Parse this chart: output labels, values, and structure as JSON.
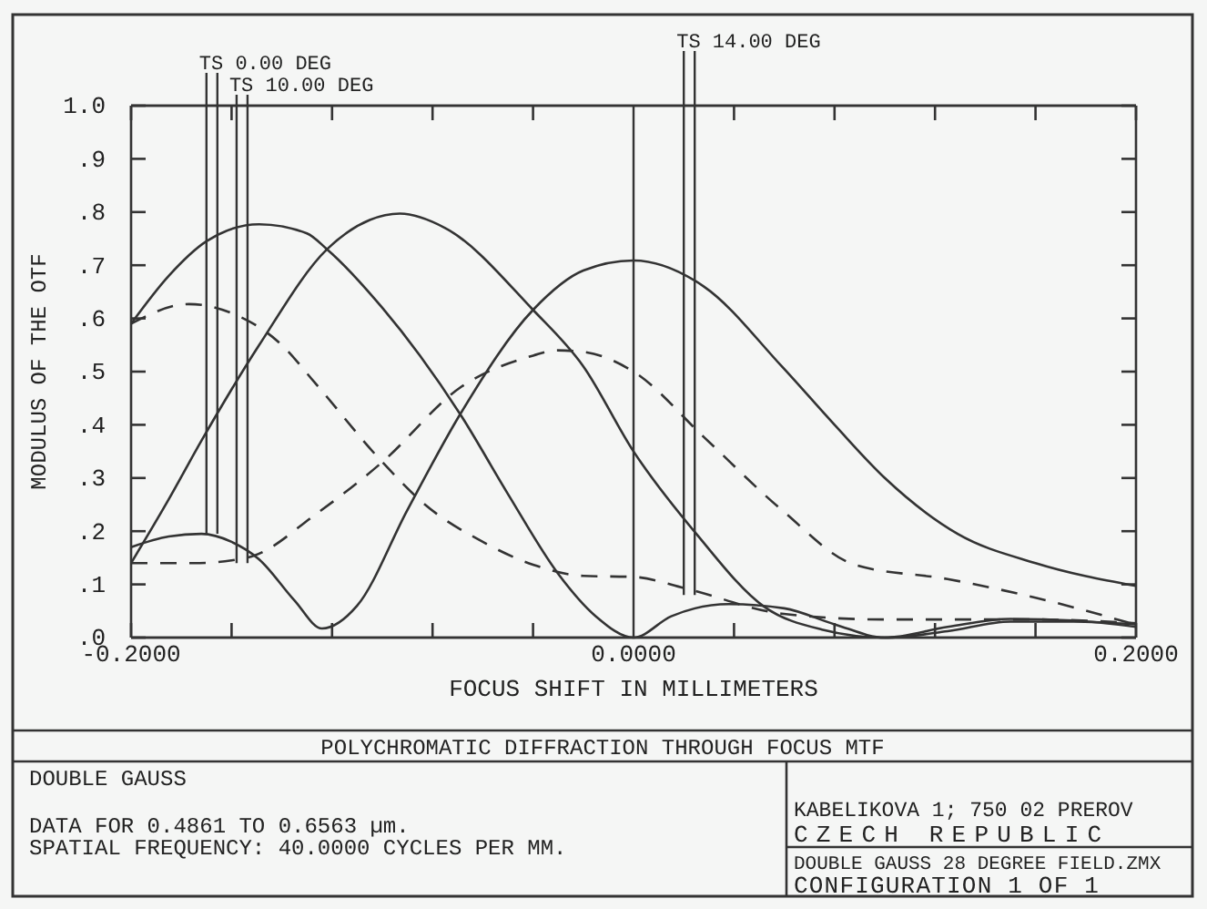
{
  "chart_data": {
    "type": "line",
    "title": "POLYCHROMATIC DIFFRACTION THROUGH FOCUS MTF",
    "xlabel": "FOCUS SHIFT IN MILLIMETERS",
    "ylabel": "MODULUS OF THE OTF",
    "xlim": [
      -0.2,
      0.2
    ],
    "xticks": [
      {
        "value": -0.2,
        "label": "-0.2000"
      },
      {
        "value": -0.16,
        "label": null
      },
      {
        "value": -0.12,
        "label": null
      },
      {
        "value": -0.08,
        "label": null
      },
      {
        "value": -0.04,
        "label": null
      },
      {
        "value": 0,
        "label": "0.0000"
      },
      {
        "value": 0.04,
        "label": null
      },
      {
        "value": 0.08,
        "label": null
      },
      {
        "value": 0.12,
        "label": null
      },
      {
        "value": 0.16,
        "label": null
      },
      {
        "value": 0.2,
        "label": "0.2000"
      }
    ],
    "ylim": [
      0,
      1
    ],
    "yticks": [
      {
        "value": 0,
        "label": ".0"
      },
      {
        "value": 0.1,
        "label": ".1"
      },
      {
        "value": 0.2,
        "label": ".2"
      },
      {
        "value": 0.3,
        "label": ".3"
      },
      {
        "value": 0.4,
        "label": ".4"
      },
      {
        "value": 0.5,
        "label": ".5"
      },
      {
        "value": 0.6,
        "label": ".6"
      },
      {
        "value": 0.7,
        "label": ".7"
      },
      {
        "value": 0.8,
        "label": ".8"
      },
      {
        "value": 0.9,
        "label": ".9"
      },
      {
        "value": 1,
        "label": "1.0"
      }
    ],
    "grid": false,
    "marker": "none",
    "series": [
      {
        "color": "#333333",
        "line_style": "solid",
        "x": [
          -0.2,
          -0.185,
          -0.17,
          -0.149,
          -0.13,
          -0.122,
          -0.1,
          -0.085,
          -0.069,
          -0.05,
          -0.03,
          -0.015,
          0,
          0.015,
          0.038,
          0.06,
          0.08,
          0.1,
          0.125,
          0.15,
          0.175,
          0.2
        ],
        "values": [
          0.59,
          0.68,
          0.745,
          0.777,
          0.76,
          0.73,
          0.62,
          0.53,
          0.42,
          0.27,
          0.12,
          0.04,
          0.0,
          0.04,
          0.063,
          0.055,
          0.025,
          0.0,
          0.02,
          0.035,
          0.032,
          0.02
        ]
      },
      {
        "color": "#333333",
        "line_style": "solid",
        "x": [
          -0.2,
          -0.185,
          -0.172,
          -0.149,
          -0.122,
          -0.105,
          -0.093,
          -0.075,
          -0.04,
          -0.02,
          0,
          0.025,
          0.052,
          0.075,
          0.1,
          0.125,
          0.15,
          0.175,
          0.2
        ],
        "values": [
          0.14,
          0.26,
          0.37,
          0.55,
          0.73,
          0.785,
          0.797,
          0.77,
          0.616,
          0.51,
          0.35,
          0.195,
          0.058,
          0.015,
          0.0,
          0.012,
          0.03,
          0.03,
          0.025
        ]
      },
      {
        "color": "#333333",
        "line_style": "solid",
        "x": [
          -0.2,
          -0.185,
          -0.172,
          -0.16,
          -0.149,
          -0.135,
          -0.124,
          -0.11,
          -0.09,
          -0.069,
          -0.04,
          -0.02,
          0,
          0.028,
          0.059,
          0.08,
          0.1,
          0.129,
          0.16,
          0.2
        ],
        "values": [
          0.17,
          0.19,
          0.195,
          0.18,
          0.147,
          0.07,
          0.017,
          0.06,
          0.24,
          0.42,
          0.616,
          0.69,
          0.709,
          0.66,
          0.51,
          0.4,
          0.3,
          0.195,
          0.14,
          0.097
        ]
      },
      {
        "color": "#333333",
        "line_style": "dashed",
        "x": [
          -0.2,
          -0.177,
          -0.16,
          -0.14,
          -0.127,
          -0.1,
          -0.083,
          -0.06,
          -0.04,
          -0.02,
          0,
          0.021,
          0.059,
          0.1,
          0.16,
          0.2
        ],
        "values": [
          0.59,
          0.627,
          0.61,
          0.55,
          0.48,
          0.33,
          0.25,
          0.18,
          0.137,
          0.116,
          0.114,
          0.092,
          0.045,
          0.034,
          0.034,
          0.027
        ]
      },
      {
        "color": "#333333",
        "line_style": "dashed",
        "x": [
          -0.2,
          -0.175,
          -0.16,
          -0.151,
          -0.127,
          -0.1,
          -0.069,
          -0.04,
          -0.031,
          -0.02,
          0,
          0.028,
          0.059,
          0.088,
          0.125,
          0.16,
          0.2
        ],
        "values": [
          0.14,
          0.14,
          0.145,
          0.154,
          0.23,
          0.33,
          0.47,
          0.53,
          0.54,
          0.537,
          0.5,
          0.377,
          0.24,
          0.137,
          0.11,
          0.075,
          0.024
        ]
      }
    ],
    "ref_lines": [
      {
        "axis": "x",
        "value": 0,
        "label": null
      }
    ],
    "annotations": [
      {
        "text": "TS 0.00 DEG",
        "x": -0.17,
        "y": 0.195
      },
      {
        "text": "TS 10.00 DEG",
        "x": -0.158,
        "y": 0.14
      },
      {
        "text": "TS 14.00 DEG",
        "x": 0.02,
        "y": 0.08
      },
      "DOUBLE GAUSS",
      "DATA FOR 0.4861 TO 0.6563 µm.",
      "SPATIAL FREQUENCY: 40.0000 CYCLES PER MM.",
      "KABELIKOVA 1; 750 02 PREROV",
      "CZECH REPUBLIC",
      "DOUBLE GAUSS 28 DEGREE FIELD.ZMX",
      "CONFIGURATION 1 OF 1"
    ]
  }
}
